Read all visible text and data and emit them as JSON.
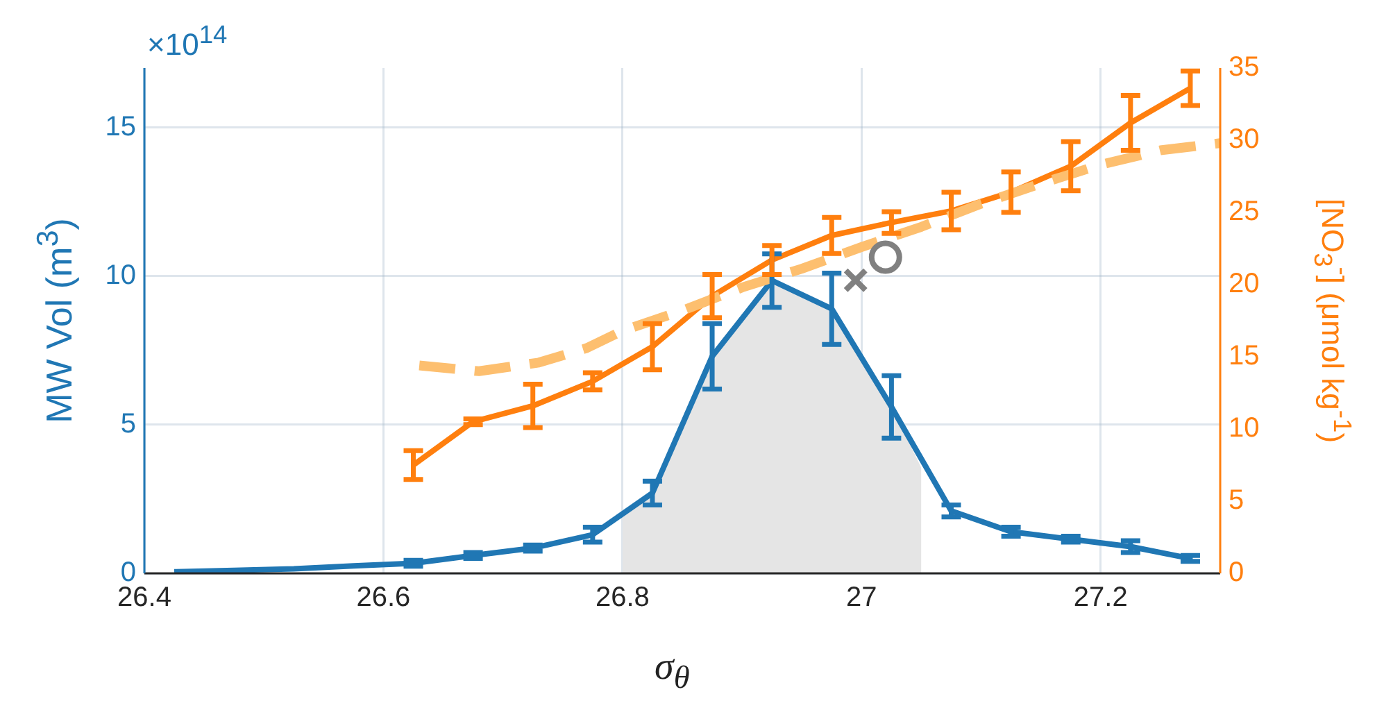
{
  "chart_data": {
    "type": "line",
    "xlabel": "σ$_{θ}$",
    "ylabel": "MW Vol (m$^{3}$)",
    "y2label": "[NO$_{3}$$^{-}$] (μmol kg$^{-1}$)",
    "annotations": [
      "×10$^{14}$"
    ],
    "x": [
      26.425,
      26.475,
      26.525,
      26.575,
      26.625,
      26.675,
      26.725,
      26.775,
      26.825,
      26.875,
      26.925,
      26.975,
      27.025,
      27.075,
      27.125,
      27.175,
      27.225,
      27.275
    ],
    "xlim": [
      26.4,
      27.3
    ],
    "xticks": [
      26.4,
      26.6,
      26.8,
      27,
      27.2
    ],
    "ylim": [
      0,
      17
    ],
    "yticks": [
      0,
      5,
      10,
      15
    ],
    "y2lim": [
      0,
      35
    ],
    "y2ticks": [
      0,
      5,
      10,
      15,
      20,
      25,
      30,
      35
    ],
    "grid": true,
    "legend": false,
    "marker": "none",
    "series": [
      {
        "type": "area",
        "color": "#e5e5e5",
        "x": [
          26.8,
          26.825,
          26.875,
          26.925,
          26.975,
          27.025,
          27.05
        ],
        "values": [
          2.1,
          2.7,
          7.3,
          9.85,
          8.9,
          5.6,
          3.55
        ]
      },
      {
        "color": "#2077b4",
        "values": [
          0.05,
          0.1,
          0.15,
          0.25,
          0.34,
          0.6,
          0.85,
          1.3,
          2.7,
          7.3,
          9.85,
          8.9,
          5.6,
          2.1,
          1.4,
          1.15,
          0.9,
          0.5
        ],
        "errors": [
          null,
          null,
          null,
          null,
          0.1,
          0.1,
          0.1,
          0.25,
          0.4,
          1.1,
          0.9,
          1.2,
          1.05,
          0.2,
          0.15,
          0.1,
          0.2,
          0.1
        ]
      },
      {
        "color": "#ff7f0e",
        "axis": "y2",
        "x": [
          26.625,
          26.675,
          26.725,
          26.775,
          26.825,
          26.875,
          26.925,
          26.975,
          27.025,
          27.075,
          27.125,
          27.175,
          27.225,
          27.275
        ],
        "values": [
          7.5,
          10.5,
          11.6,
          13.3,
          15.7,
          19.2,
          21.7,
          23.4,
          24.3,
          25.1,
          26.4,
          28.2,
          31.2,
          33.6
        ],
        "errors": [
          1,
          0.2,
          1.5,
          0.6,
          1.6,
          1.5,
          1,
          1.25,
          0.75,
          1.3,
          1.4,
          1.7,
          1.9,
          1.2
        ]
      },
      {
        "color": "#fdbf6f",
        "axis": "y2",
        "line_style": "dashed",
        "x": [
          26.63,
          26.68,
          26.73,
          26.77,
          26.8,
          26.85,
          26.9,
          26.95,
          27.0,
          27.05,
          27.1,
          27.15,
          27.2,
          27.25,
          27.3
        ],
        "values": [
          14.4,
          14.0,
          14.6,
          15.6,
          16.8,
          18.2,
          19.8,
          21.1,
          22.6,
          24.0,
          25.6,
          27.0,
          28.3,
          29.3,
          29.8
        ]
      },
      {
        "type": "scatter",
        "color": "#808080",
        "axis": "y2",
        "marker": "cross",
        "x": [
          26.995
        ],
        "values": [
          20.3
        ]
      },
      {
        "type": "scatter",
        "color": "#808080",
        "axis": "y2",
        "marker": "circle",
        "x": [
          27.02
        ],
        "values": [
          21.9
        ]
      }
    ]
  }
}
